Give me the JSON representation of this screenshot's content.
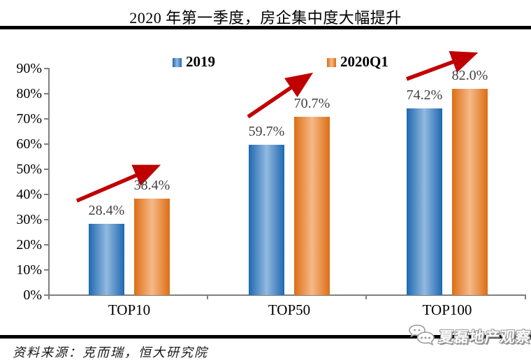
{
  "title": "2020 年第一季度，房企集中度大幅提升",
  "legend": {
    "items": [
      {
        "label": "2019"
      },
      {
        "label": "2020Q1"
      }
    ]
  },
  "chart_data": {
    "type": "bar",
    "categories": [
      "TOP10",
      "TOP50",
      "TOP100"
    ],
    "series": [
      {
        "name": "2019",
        "values": [
          28.4,
          59.7,
          74.2
        ],
        "labels": [
          "28.4%",
          "59.7%",
          "74.2%"
        ],
        "color_edge": "#1E69B0",
        "color_mid": "#93B9E0"
      },
      {
        "name": "2020Q1",
        "values": [
          38.4,
          70.7,
          82.0
        ],
        "labels": [
          "38.4%",
          "70.7%",
          "82.0%"
        ],
        "color_edge": "#DC6E14",
        "color_mid": "#F6B988"
      }
    ],
    "y_ticks": [
      "0%",
      "10%",
      "20%",
      "30%",
      "40%",
      "50%",
      "60%",
      "70%",
      "80%",
      "90%"
    ],
    "ylim": [
      0,
      90
    ],
    "grid": false,
    "legend_position": "top",
    "annotations": [
      {
        "type": "arrow",
        "meaning": "increase",
        "category": "TOP10"
      },
      {
        "type": "arrow",
        "meaning": "increase",
        "category": "TOP50"
      },
      {
        "type": "arrow",
        "meaning": "increase",
        "category": "TOP100"
      }
    ],
    "arrow_color": "#C00000"
  },
  "source_note": "资料来源：克而瑞，恒大研究院",
  "watermark": {
    "text": "夏磊地产观察",
    "icon": "chat-bubble-icon"
  },
  "colors": {
    "axis": "#808080",
    "value_label": "#404040",
    "rule": "#000000",
    "background": "#FFFFFF"
  }
}
